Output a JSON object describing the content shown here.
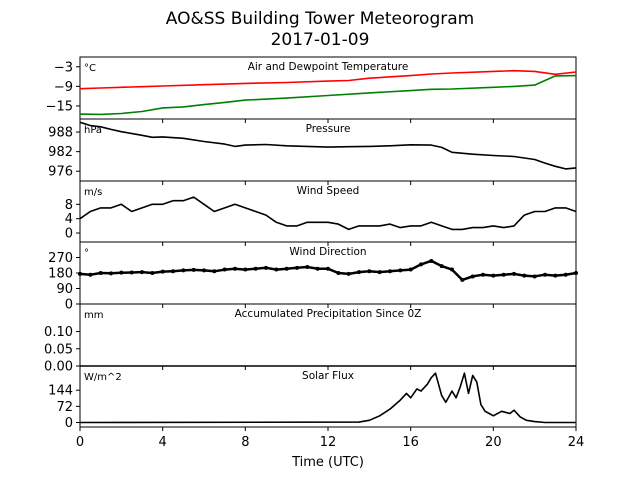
{
  "title_line1": "AO&SS Building Tower Meteorogram",
  "title_line2": "2017-01-09",
  "xlabel": "Time (UTC)",
  "x_ticks": [
    "0",
    "4",
    "8",
    "12",
    "16",
    "20",
    "24"
  ],
  "x_tick_values": [
    0,
    4,
    8,
    12,
    16,
    20,
    24
  ],
  "colors": {
    "axis": "#000000",
    "temperature": "#ff0000",
    "dewpoint": "#008000",
    "trace": "#000000"
  },
  "chart_data": [
    {
      "type": "line",
      "title": "Air and Dewpoint Temperature",
      "unit_label": "°C",
      "xlim": [
        0,
        24
      ],
      "ylim": [
        -19,
        0
      ],
      "y_ticks": [
        -3,
        -9,
        -15
      ],
      "y_tick_labels": [
        "−3",
        "−9",
        "−15"
      ],
      "series": [
        {
          "name": "",
          "color": "#ff0000",
          "x": [
            0,
            1,
            2,
            3,
            4,
            6,
            8,
            10,
            12,
            13,
            14,
            16,
            17,
            18,
            20,
            21,
            22,
            23,
            24
          ],
          "y": [
            -9.7,
            -9.5,
            -9.3,
            -9.1,
            -8.9,
            -8.5,
            -8.1,
            -7.8,
            -7.4,
            -7.2,
            -6.5,
            -5.7,
            -5.2,
            -4.9,
            -4.4,
            -4.2,
            -4.4,
            -5.3,
            -4.6
          ]
        },
        {
          "name": "",
          "color": "#008000",
          "x": [
            0,
            1,
            2,
            3,
            4,
            5,
            6,
            7,
            8,
            10,
            12,
            14,
            16,
            17,
            18,
            20,
            21,
            22,
            23,
            24
          ],
          "y": [
            -17.5,
            -17.6,
            -17.3,
            -16.7,
            -15.6,
            -15.3,
            -14.6,
            -13.9,
            -13.2,
            -12.6,
            -11.8,
            -11.0,
            -10.3,
            -9.9,
            -9.8,
            -9.3,
            -9.0,
            -8.6,
            -5.8,
            -5.7
          ]
        }
      ]
    },
    {
      "type": "line",
      "title": "Pressure",
      "unit_label": "hPa",
      "xlim": [
        0,
        24
      ],
      "ylim": [
        973,
        992
      ],
      "y_ticks": [
        988,
        982,
        976
      ],
      "y_tick_labels": [
        "988",
        "982",
        "976"
      ],
      "series": [
        {
          "name": "",
          "color": "#000000",
          "x": [
            0,
            0.5,
            1,
            1.5,
            2,
            3,
            3.5,
            4,
            5,
            6,
            7,
            7.5,
            8,
            9,
            10,
            11,
            12,
            13,
            14,
            15,
            16,
            17,
            17.5,
            18,
            19,
            20,
            21,
            22,
            22.5,
            23,
            23.5,
            24
          ],
          "y": [
            991,
            990,
            989.6,
            988.8,
            988.1,
            987,
            986.4,
            986.5,
            986.1,
            985.1,
            984.3,
            983.6,
            984,
            984.2,
            983.8,
            983.6,
            983.4,
            983.5,
            983.6,
            983.8,
            984.1,
            984.0,
            983.3,
            981.8,
            981.2,
            980.8,
            980.5,
            979.6,
            978.5,
            977.5,
            976.7,
            977.0
          ]
        }
      ]
    },
    {
      "type": "line",
      "title": "Wind Speed",
      "unit_label": "m/s",
      "xlim": [
        0,
        24
      ],
      "ylim": [
        -2.5,
        14.5
      ],
      "y_ticks": [
        8,
        4,
        0
      ],
      "y_tick_labels": [
        "8",
        "4",
        "0"
      ],
      "series": [
        {
          "name": "",
          "color": "#000000",
          "x": [
            0,
            0.5,
            1,
            1.5,
            2,
            2.5,
            3,
            3.5,
            4,
            4.5,
            5,
            5.5,
            6,
            6.5,
            7,
            7.5,
            8,
            8.5,
            9,
            9.5,
            10,
            10.5,
            11,
            11.5,
            12,
            12.5,
            13,
            13.5,
            14,
            14.5,
            15,
            15.5,
            16,
            16.5,
            17,
            17.5,
            18,
            18.5,
            19,
            19.5,
            20,
            20.5,
            21,
            21.5,
            22,
            22.5,
            23,
            23.5,
            24
          ],
          "y": [
            4,
            6,
            7,
            7,
            8,
            6,
            7,
            8,
            8,
            9,
            9,
            10,
            8,
            6,
            7,
            8,
            7,
            6,
            5,
            3,
            2,
            2,
            3,
            3,
            3,
            2.5,
            1,
            2,
            2,
            2,
            2.5,
            1.5,
            2,
            2,
            3,
            2,
            1,
            1,
            1.5,
            1.5,
            2,
            1.5,
            2,
            5,
            6,
            6,
            7,
            7,
            6
          ]
        }
      ]
    },
    {
      "type": "scatter",
      "title": "Wind Direction",
      "unit_label": "°",
      "xlim": [
        0,
        24
      ],
      "ylim": [
        0,
        360
      ],
      "y_ticks": [
        270,
        180,
        90,
        0
      ],
      "y_tick_labels": [
        "270",
        "180",
        "90",
        "0"
      ],
      "series": [
        {
          "name": "",
          "color": "#000000",
          "x": [
            0,
            0.5,
            1,
            1.5,
            2,
            2.5,
            3,
            3.5,
            4,
            4.5,
            5,
            5.5,
            6,
            6.5,
            7,
            7.5,
            8,
            8.5,
            9,
            9.5,
            10,
            10.5,
            11,
            11.5,
            12,
            12.5,
            13,
            13.5,
            14,
            14.5,
            15,
            15.5,
            16,
            16.5,
            17,
            17.5,
            18,
            18.5,
            19,
            19.5,
            20,
            20.5,
            21,
            21.5,
            22,
            22.5,
            23,
            23.5,
            24
          ],
          "y": [
            175,
            170,
            180,
            178,
            182,
            183,
            185,
            180,
            188,
            190,
            195,
            198,
            195,
            190,
            200,
            205,
            200,
            205,
            210,
            200,
            205,
            210,
            215,
            205,
            205,
            180,
            175,
            185,
            190,
            185,
            190,
            195,
            200,
            230,
            250,
            220,
            200,
            140,
            160,
            170,
            165,
            170,
            175,
            165,
            160,
            170,
            165,
            170,
            180
          ]
        }
      ]
    },
    {
      "type": "line",
      "title": "Accumulated Precipitation Since 0Z",
      "unit_label": "mm",
      "xlim": [
        0,
        24
      ],
      "ylim": [
        0,
        0.18
      ],
      "y_ticks": [
        0.1,
        0.05,
        0.0
      ],
      "y_tick_labels": [
        "0.10",
        "0.05",
        "0.00"
      ],
      "series": [
        {
          "name": "",
          "color": "#000000",
          "x": [
            0,
            24
          ],
          "y": [
            0,
            0
          ]
        }
      ]
    },
    {
      "type": "line",
      "title": "Solar Flux",
      "unit_label": "W/m^2",
      "xlim": [
        0,
        24
      ],
      "ylim": [
        -20,
        252
      ],
      "y_ticks": [
        144,
        72,
        0
      ],
      "y_tick_labels": [
        "144",
        "72",
        "0"
      ],
      "series": [
        {
          "name": "",
          "color": "#000000",
          "x": [
            0,
            13.5,
            14,
            14.5,
            15,
            15.5,
            15.8,
            16,
            16.3,
            16.5,
            16.8,
            17,
            17.2,
            17.5,
            17.7,
            18,
            18.2,
            18.4,
            18.6,
            18.8,
            19,
            19.2,
            19.4,
            19.6,
            19.8,
            20,
            20.4,
            20.8,
            21,
            21.3,
            21.6,
            22,
            22.5,
            24
          ],
          "y": [
            0,
            2,
            10,
            30,
            60,
            100,
            130,
            110,
            150,
            140,
            170,
            200,
            220,
            120,
            90,
            140,
            110,
            160,
            220,
            130,
            210,
            180,
            80,
            50,
            40,
            30,
            50,
            40,
            55,
            25,
            10,
            4,
            0,
            0
          ]
        }
      ]
    }
  ]
}
